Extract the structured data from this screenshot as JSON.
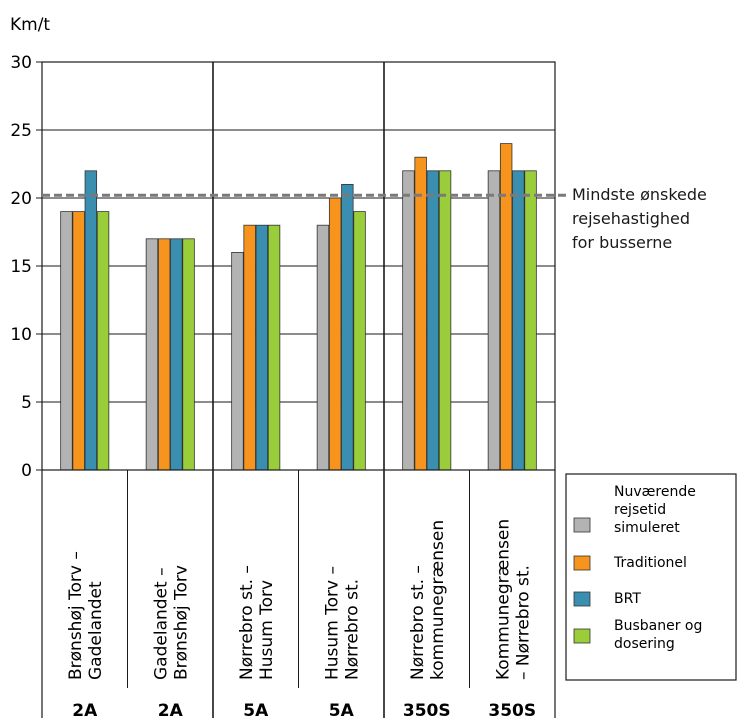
{
  "chart_data": {
    "type": "bar",
    "ylabel": "Km/t",
    "ylim": [
      0,
      30
    ],
    "y_ticks": [
      0,
      5,
      10,
      15,
      20,
      25,
      30
    ],
    "grid": true,
    "legend_position": "bottom-right",
    "categories": [
      "Brønshøj Torv – Gadelandet",
      "Gadelandet – Brønshøj Torv",
      "Nørrebro st. – Husum Torv",
      "Husum Torv – Nørrebro st.",
      "Nørrebro st. – kommunegrænsen",
      "Kommunegrænsen – Nørrebro st."
    ],
    "category_lines": [
      [
        "Brønshøj Torv –",
        "Gadelandet"
      ],
      [
        "Gadelandet –",
        "Brønshøj Torv"
      ],
      [
        "Nørrebro st. –",
        "Husum Torv"
      ],
      [
        "Husum Torv –",
        "Nørrebro st."
      ],
      [
        "Nørrebro st. –",
        "kommunegrænsen"
      ],
      [
        "Kommunegrænsen",
        "– Nørrebro st."
      ]
    ],
    "routes": [
      "2A",
      "2A",
      "5A",
      "5A",
      "350S",
      "350S"
    ],
    "series": [
      {
        "name": "Nuværende rejsetid simuleret",
        "legend_lines": [
          "Nuværende",
          "rejsetid",
          "simuleret"
        ],
        "color": "#b3b3b3",
        "values": [
          19,
          17,
          16,
          18,
          22,
          22
        ]
      },
      {
        "name": "Traditionel",
        "legend_lines": [
          "Traditionel"
        ],
        "color": "#f7941d",
        "values": [
          19,
          17,
          18,
          20,
          23,
          24
        ]
      },
      {
        "name": "BRT",
        "legend_lines": [
          "BRT"
        ],
        "color": "#3a8fb0",
        "values": [
          22,
          17,
          18,
          21,
          22,
          22
        ]
      },
      {
        "name": "Busbaner og dosering",
        "legend_lines": [
          "Busbaner og",
          "dosering"
        ],
        "color": "#9acd3a",
        "values": [
          19,
          17,
          18,
          19,
          22,
          22
        ]
      }
    ],
    "reference_line": {
      "value": 20.2,
      "label_lines": [
        "Mindste ønskede",
        "rejsehastighed",
        "for busserne"
      ],
      "color": "#7a7a7a"
    }
  }
}
